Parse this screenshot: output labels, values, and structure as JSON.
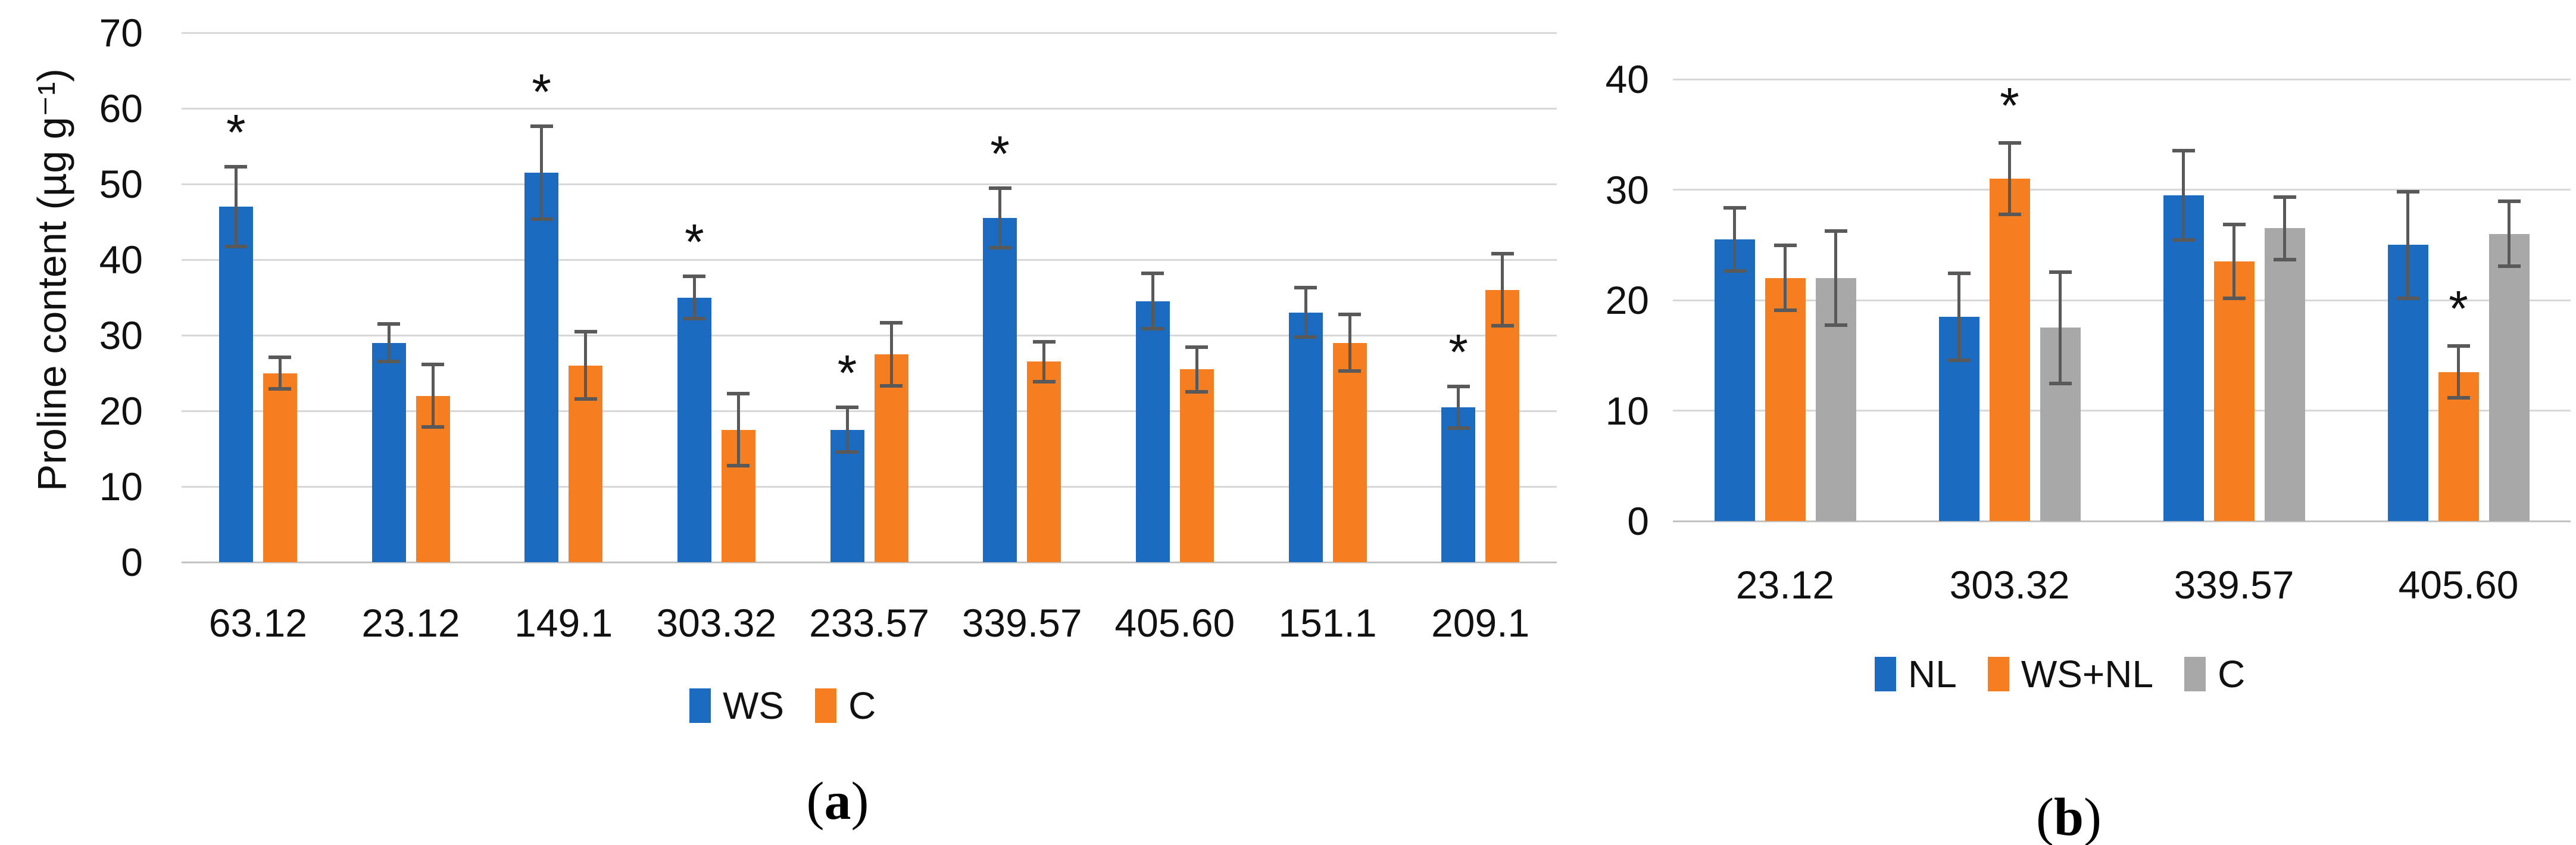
{
  "figure": {
    "background_color": "#ffffff",
    "panels": [
      {
        "id": "a",
        "ylabel": "Proline content (µg g⁻¹)",
        "caption": {
          "open": "(",
          "letter": "a",
          "close": ")"
        }
      },
      {
        "id": "b",
        "ylabel": "",
        "caption": {
          "open": "(",
          "letter": "b",
          "close": ")"
        }
      }
    ],
    "colors": {
      "series_blue": "#1b6cc1",
      "series_orange": "#f57e21",
      "series_gray": "#a8a8a8",
      "error_bar": "#595959",
      "gridline": "#d8d8d8",
      "axis_line": "#c2c2c2",
      "text": "#111111"
    },
    "significance_marker": "*"
  },
  "chart_data": [
    {
      "type": "bar",
      "panel": "a",
      "title": "",
      "xlabel": "",
      "ylabel": "Proline content (µg g⁻¹)",
      "ylim": [
        0,
        70
      ],
      "ytick_step": 10,
      "ytick_labels": [
        "0",
        "10",
        "20",
        "30",
        "40",
        "50",
        "60",
        "70"
      ],
      "grid": true,
      "legend_position": "bottom",
      "error_bars": true,
      "categories": [
        "63.12",
        "23.12",
        "149.1",
        "303.32",
        "233.57",
        "339.57",
        "405.60",
        "151.1",
        "209.1"
      ],
      "series": [
        {
          "name": "WS",
          "color": "#1b6cc1",
          "values": [
            47,
            29,
            51.5,
            35,
            17.5,
            45.5,
            34.5,
            33,
            20.5
          ],
          "errors": [
            5.5,
            2.7,
            6.4,
            3,
            3.2,
            4.2,
            3.9,
            3.5,
            3
          ],
          "significant": [
            true,
            false,
            true,
            true,
            true,
            true,
            false,
            false,
            true
          ]
        },
        {
          "name": "C",
          "color": "#f57e21",
          "values": [
            25,
            22,
            26,
            17.5,
            27.5,
            26.5,
            25.5,
            29,
            36
          ],
          "errors": [
            2.3,
            4.4,
            4.7,
            5,
            4.4,
            2.9,
            3.2,
            4,
            5
          ],
          "significant": [
            false,
            false,
            false,
            false,
            false,
            false,
            false,
            false,
            false
          ]
        }
      ]
    },
    {
      "type": "bar",
      "panel": "b",
      "title": "",
      "xlabel": "",
      "ylabel": "",
      "ylim": [
        0,
        40
      ],
      "ytick_step": 10,
      "ytick_labels": [
        "0",
        "10",
        "20",
        "30",
        "40"
      ],
      "grid": true,
      "legend_position": "bottom",
      "error_bars": true,
      "categories": [
        "23.12",
        "303.32",
        "339.57",
        "405.60"
      ],
      "series": [
        {
          "name": "NL",
          "color": "#1b6cc1",
          "values": [
            25.5,
            18.5,
            29.5,
            25
          ],
          "errors": [
            3,
            4.1,
            4.2,
            5
          ],
          "significant": [
            false,
            false,
            false,
            false
          ]
        },
        {
          "name": "WS+NL",
          "color": "#f57e21",
          "values": [
            22,
            31,
            23.5,
            13.5
          ],
          "errors": [
            3.1,
            3.4,
            3.5,
            2.5
          ],
          "significant": [
            false,
            true,
            false,
            true
          ]
        },
        {
          "name": "C",
          "color": "#a8a8a8",
          "values": [
            22,
            17.5,
            26.5,
            26
          ],
          "errors": [
            4.4,
            5.2,
            3,
            3.1
          ],
          "significant": [
            false,
            false,
            false,
            false
          ]
        }
      ]
    }
  ]
}
